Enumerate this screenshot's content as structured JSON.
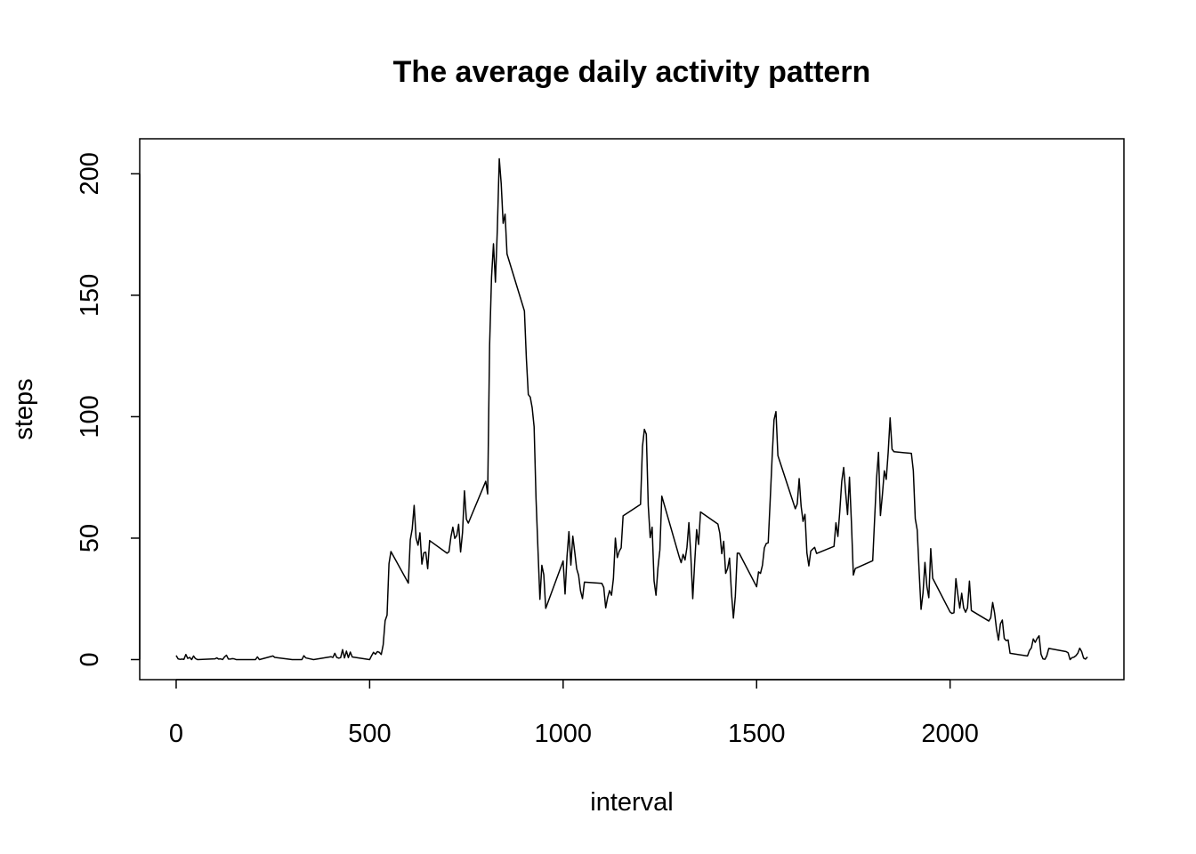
{
  "chart_data": {
    "type": "line",
    "title": "The average daily activity pattern",
    "x_label": "interval",
    "y_label": "steps",
    "color": "#000000",
    "x": [
      0,
      5,
      10,
      15,
      20,
      25,
      30,
      35,
      40,
      45,
      50,
      55,
      100,
      105,
      110,
      115,
      120,
      125,
      130,
      135,
      140,
      145,
      150,
      155,
      200,
      205,
      210,
      215,
      250,
      255,
      300,
      325,
      330,
      335,
      355,
      400,
      405,
      410,
      415,
      420,
      425,
      430,
      435,
      440,
      445,
      450,
      455,
      500,
      505,
      510,
      515,
      520,
      525,
      530,
      535,
      540,
      545,
      550,
      555,
      600,
      605,
      610,
      615,
      620,
      625,
      630,
      635,
      640,
      645,
      650,
      655,
      700,
      705,
      710,
      715,
      720,
      725,
      730,
      735,
      740,
      745,
      750,
      755,
      800,
      805,
      810,
      815,
      820,
      825,
      830,
      835,
      840,
      845,
      850,
      855,
      900,
      905,
      910,
      915,
      920,
      925,
      930,
      935,
      940,
      945,
      950,
      955,
      1000,
      1005,
      1010,
      1015,
      1020,
      1025,
      1030,
      1035,
      1040,
      1045,
      1050,
      1055,
      1100,
      1105,
      1110,
      1115,
      1120,
      1125,
      1130,
      1135,
      1140,
      1145,
      1150,
      1155,
      1200,
      1205,
      1210,
      1215,
      1220,
      1225,
      1230,
      1235,
      1240,
      1245,
      1250,
      1255,
      1300,
      1305,
      1310,
      1315,
      1320,
      1325,
      1330,
      1335,
      1340,
      1345,
      1350,
      1355,
      1400,
      1405,
      1410,
      1415,
      1420,
      1425,
      1430,
      1435,
      1440,
      1445,
      1450,
      1455,
      1500,
      1505,
      1510,
      1515,
      1520,
      1525,
      1530,
      1535,
      1540,
      1545,
      1550,
      1555,
      1600,
      1605,
      1610,
      1615,
      1620,
      1625,
      1630,
      1635,
      1640,
      1645,
      1650,
      1655,
      1700,
      1705,
      1710,
      1715,
      1720,
      1725,
      1730,
      1735,
      1740,
      1745,
      1750,
      1755,
      1800,
      1805,
      1810,
      1815,
      1820,
      1825,
      1830,
      1835,
      1840,
      1845,
      1850,
      1855,
      1900,
      1905,
      1910,
      1915,
      1920,
      1925,
      1930,
      1935,
      1940,
      1945,
      1950,
      1955,
      2000,
      2005,
      2010,
      2015,
      2020,
      2025,
      2030,
      2035,
      2040,
      2045,
      2050,
      2055,
      2100,
      2105,
      2110,
      2115,
      2120,
      2125,
      2130,
      2135,
      2140,
      2145,
      2150,
      2155,
      2200,
      2205,
      2210,
      2215,
      2220,
      2225,
      2230,
      2235,
      2240,
      2245,
      2250,
      2255,
      2300,
      2305,
      2310,
      2315,
      2320,
      2325,
      2330,
      2335,
      2340,
      2345,
      2350,
      2355
    ],
    "values": [
      1.7,
      0.3,
      0.1,
      0.2,
      0.1,
      2.1,
      0.5,
      0.9,
      0,
      1.5,
      0.4,
      0,
      0.3,
      0.7,
      0.2,
      0.3,
      0,
      1.1,
      1.8,
      0.2,
      0.2,
      0.4,
      0.3,
      0,
      0,
      0,
      1.1,
      0,
      1.5,
      0.9,
      0,
      0,
      1.6,
      0.7,
      0,
      1.2,
      0.9,
      2.6,
      0.9,
      0.6,
      0.8,
      4.1,
      0.7,
      3.5,
      0.8,
      3.1,
      1.1,
      0,
      1.6,
      3,
      2.2,
      3.3,
      3,
      2.1,
      6.1,
      16,
      18.3,
      39.5,
      44.5,
      31.5,
      49.3,
      53.8,
      63.5,
      50,
      47.1,
      52.2,
      39.3,
      44,
      44.2,
      37.4,
      49,
      43.8,
      44.4,
      50.5,
      54.5,
      49.9,
      51,
      55.7,
      44.3,
      52.3,
      69.5,
      57.8,
      56.2,
      73.4,
      68.2,
      129.4,
      157.5,
      171.2,
      155.4,
      177.3,
      206.2,
      195.9,
      179.6,
      183.4,
      167,
      143.5,
      124,
      109.1,
      108.1,
      103.7,
      95.9,
      66.2,
      45.2,
      24.8,
      38.8,
      35,
      21.1,
      40.6,
      27,
      42.4,
      52.7,
      38.9,
      50.8,
      44.3,
      37.4,
      34.7,
      28.3,
      25.1,
      31.9,
      31.4,
      29.7,
      21.3,
      25.5,
      28.4,
      26.5,
      33.4,
      50,
      42,
      44.6,
      46,
      59.2,
      63.9,
      87.7,
      94.8,
      92.8,
      63.4,
      50.2,
      54.5,
      32.4,
      26.5,
      37.7,
      45.1,
      67.3,
      42.3,
      39.9,
      43.3,
      41,
      46.2,
      56.4,
      42.8,
      25.1,
      40,
      53.5,
      47.4,
      60.8,
      55.8,
      52,
      43.6,
      48.7,
      35.5,
      37.5,
      41.8,
      27.5,
      17.1,
      26.1,
      43.8,
      43.8,
      30,
      36.1,
      35.5,
      38.8,
      46,
      47.8,
      48.1,
      65.3,
      82.9,
      98.7,
      102.1,
      84,
      62.1,
      64.1,
      74.5,
      63.2,
      56.9,
      59.8,
      43.9,
      38.6,
      44.7,
      45.5,
      46.2,
      43.7,
      46.6,
      56.3,
      50.7,
      61.2,
      73.4,
      79.1,
      68.9,
      59.7,
      75.1,
      56.5,
      34.8,
      37.5,
      40.7,
      58,
      74.7,
      85.3,
      59.3,
      67.8,
      77.7,
      74.2,
      85.3,
      99.5,
      86.6,
      85.6,
      84.9,
      77.8,
      58,
      53.4,
      36.3,
      20.7,
      27.4,
      40,
      30.2,
      25.5,
      45.7,
      33.5,
      19.6,
      19,
      19.3,
      33.3,
      26.8,
      21.2,
      27.3,
      21.3,
      19.5,
      21.3,
      32.3,
      20.2,
      15.9,
      17.2,
      23.5,
      19.2,
      12.5,
      8,
      14.7,
      16.3,
      8.7,
      7.8,
      8.1,
      2.6,
      1.5,
      3.7,
      4.8,
      8.5,
      7.1,
      8.7,
      9.8,
      2.2,
      0.3,
      0.1,
      1.6,
      4.6,
      3.3,
      2.8,
      0,
      0.8,
      1,
      1.6,
      2.6,
      4.7,
      3.3,
      0.6,
      0.2,
      1.1
    ],
    "xlim": [
      -94.2,
      2449.2
    ],
    "xticks": [
      0,
      500,
      1000,
      1500,
      2000
    ],
    "ylim": [
      -8.25,
      214.42
    ],
    "yticks": [
      0,
      50,
      100,
      150,
      200
    ]
  }
}
